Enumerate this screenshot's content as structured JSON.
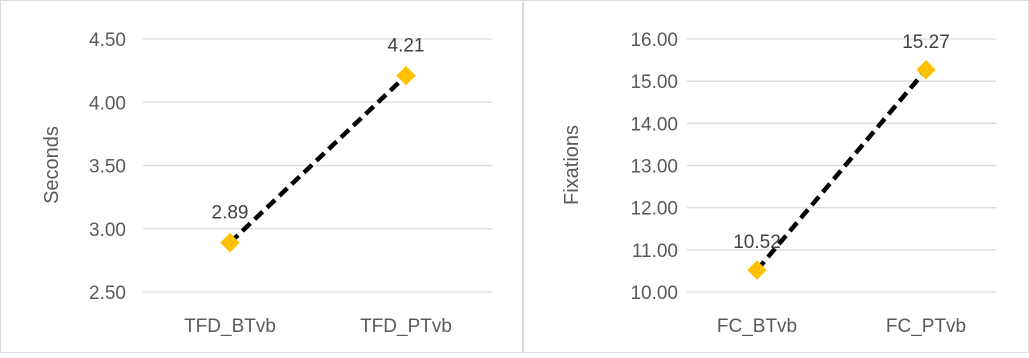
{
  "chart_data": [
    {
      "type": "line",
      "ylabel": "Seconds",
      "xlabel": "",
      "categories": [
        "TFD_BTvb",
        "TFD_PTvb"
      ],
      "values": [
        2.89,
        4.21
      ],
      "data_labels": [
        "2.89",
        "4.21"
      ],
      "ylim": [
        2.5,
        4.5
      ],
      "yticks": [
        2.5,
        3.0,
        3.5,
        4.0,
        4.5
      ],
      "ytick_labels": [
        "2.50",
        "3.00",
        "3.50",
        "4.00",
        "4.50"
      ],
      "grid": true,
      "line_style": "dashed",
      "line_color": "#000000",
      "marker": "diamond",
      "marker_color": "#FFC000"
    },
    {
      "type": "line",
      "ylabel": "Fixations",
      "xlabel": "",
      "categories": [
        "FC_BTvb",
        "FC_PTvb"
      ],
      "values": [
        10.52,
        15.27
      ],
      "data_labels": [
        "10.52",
        "15.27"
      ],
      "ylim": [
        10,
        16
      ],
      "yticks": [
        10,
        11,
        12,
        13,
        14,
        15,
        16
      ],
      "ytick_labels": [
        "10.00",
        "11.00",
        "12.00",
        "13.00",
        "14.00",
        "15.00",
        "16.00"
      ],
      "grid": true,
      "line_style": "dashed",
      "line_color": "#000000",
      "marker": "diamond",
      "marker_color": "#FFC000"
    }
  ]
}
